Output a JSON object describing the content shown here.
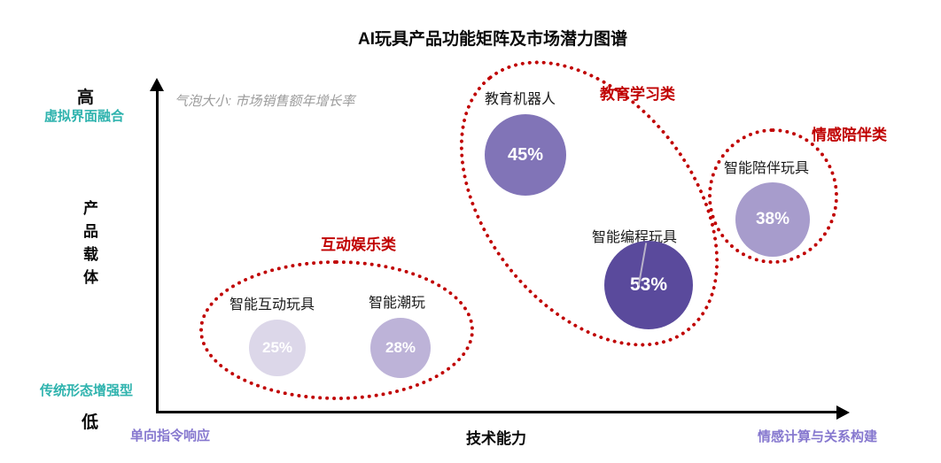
{
  "title": "AI玩具产品功能矩阵及市场潜力图谱",
  "legend_note": "气泡大小: 市场销售额年增长率",
  "axes": {
    "y": {
      "label": "产品载体",
      "high_tick": "高",
      "low_tick": "低",
      "high_desc": "虚拟界面融合",
      "low_desc": "传统形态增强型"
    },
    "x": {
      "label": "技术能力",
      "left_desc": "单向指令响应",
      "right_desc": "情感计算与关系构建"
    }
  },
  "colors": {
    "cluster_outline_red": "#C00000",
    "axis_desc_teal": "#2FB3AE",
    "axis_desc_purple": "#8678CF",
    "note_gray": "#9B9B9B",
    "axis_black": "#000000",
    "bubble_25": "#DCD7E9",
    "bubble_28": "#BDB3D8",
    "bubble_38": "#A79CCC",
    "bubble_45": "#8174B7",
    "bubble_53": "#5A4A9C"
  },
  "chart_data": {
    "type": "scatter",
    "subtype": "bubble",
    "title": "AI玩具产品功能矩阵及市场潜力图谱",
    "xlabel": "技术能力",
    "ylabel": "产品载体",
    "size_meaning": "气泡大小: 市场销售额年增长率",
    "axis_annotations": {
      "x_low": "单向指令响应",
      "x_high": "情感计算与关系构建",
      "y_low": "传统形态增强型",
      "y_high": "虚拟界面融合",
      "y_low_tick": "低",
      "y_high_tick": "高"
    },
    "grid": false,
    "clusters": [
      {
        "name": "互动娱乐类",
        "bubbles": [
          {
            "label": "智能互动玩具",
            "growth_rate": "25%",
            "x": 0.17,
            "y": 0.2
          },
          {
            "label": "智能潮玩",
            "growth_rate": "28%",
            "x": 0.35,
            "y": 0.2
          }
        ]
      },
      {
        "name": "教育学习类",
        "bubbles": [
          {
            "label": "教育机器人",
            "growth_rate": "45%",
            "x": 0.53,
            "y": 0.8
          },
          {
            "label": "智能编程玩具",
            "growth_rate": "53%",
            "x": 0.71,
            "y": 0.4
          }
        ]
      },
      {
        "name": "情感陪伴类",
        "bubbles": [
          {
            "label": "智能陪伴玩具",
            "growth_rate": "38%",
            "x": 0.89,
            "y": 0.6
          }
        ]
      }
    ]
  }
}
